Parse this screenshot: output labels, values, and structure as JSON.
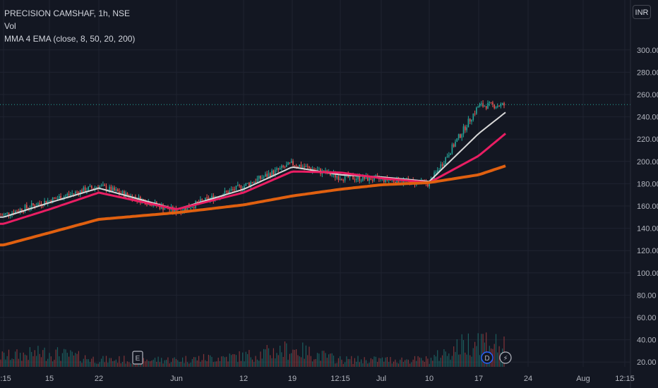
{
  "legend": {
    "symbol_line": "PRECISION CAMSHAF, 1h, NSE",
    "volume_label": "Vol",
    "ma_label": "MMA 4 EMA (close, 8, 50, 20, 200)"
  },
  "currency_button": "INR",
  "event_markers": {
    "earnings": "E",
    "dividend": "D",
    "flash": "⚡"
  },
  "colors": {
    "background": "#131722",
    "grid": "#1f2330",
    "up": "#26a69a",
    "down": "#ef5350",
    "ema_fast": "#d9d9d9",
    "ema_mid": "#e91e63",
    "ema_slow": "#e06010",
    "price_line": "#26a69a"
  },
  "chart_data": {
    "type": "candlestick",
    "symbol": "PRECISION CAMSHAF",
    "timeframe": "1h",
    "exchange": "NSE",
    "y_axis_ticks": [
      20,
      40,
      60,
      80,
      100,
      120,
      140,
      160,
      180,
      200,
      220,
      240,
      260,
      280,
      300
    ],
    "ylim": [
      10,
      310
    ],
    "x_axis_ticks": [
      "2:15",
      "15",
      "22",
      "Jun",
      "12",
      "19",
      "12:15",
      "Jul",
      "10",
      "17",
      "24",
      "Aug",
      "12:15"
    ],
    "last_price": 251,
    "series": [
      {
        "name": "EMA 8",
        "x": [
          "2:15",
          "15",
          "22",
          "Jun",
          "12",
          "19",
          "12:15",
          "Jul",
          "10",
          "17",
          "24"
        ],
        "values": [
          150,
          163,
          176,
          157,
          175,
          195,
          188,
          186,
          182,
          225,
          244
        ]
      },
      {
        "name": "EMA 20",
        "x": [
          "2:15",
          "15",
          "22",
          "Jun",
          "12",
          "19",
          "12:15",
          "Jul",
          "10",
          "17",
          "24"
        ],
        "values": [
          144,
          157,
          172,
          157,
          172,
          191,
          190,
          185,
          181,
          205,
          225
        ]
      },
      {
        "name": "EMA 200",
        "x": [
          "2:15",
          "15",
          "22",
          "Jun",
          "12",
          "19",
          "12:15",
          "Jul",
          "10",
          "17",
          "24"
        ],
        "values": [
          125,
          136,
          148,
          154,
          161,
          169,
          175,
          179,
          181,
          188,
          196
        ]
      },
      {
        "name": "Close",
        "x": [
          "2:15",
          "15",
          "22",
          "Jun",
          "12",
          "19",
          "12:15",
          "Jul",
          "10",
          "17",
          "24"
        ],
        "values": [
          152,
          165,
          178,
          155,
          178,
          198,
          186,
          184,
          180,
          250,
          251
        ]
      },
      {
        "name": "Vol",
        "x": [
          "2:15",
          "15",
          "22",
          "Jun",
          "12",
          "19",
          "12:15",
          "Jul",
          "10",
          "17",
          "24"
        ],
        "values": [
          3,
          4,
          2,
          2,
          3,
          5,
          2,
          2,
          2,
          8,
          3
        ]
      }
    ]
  }
}
